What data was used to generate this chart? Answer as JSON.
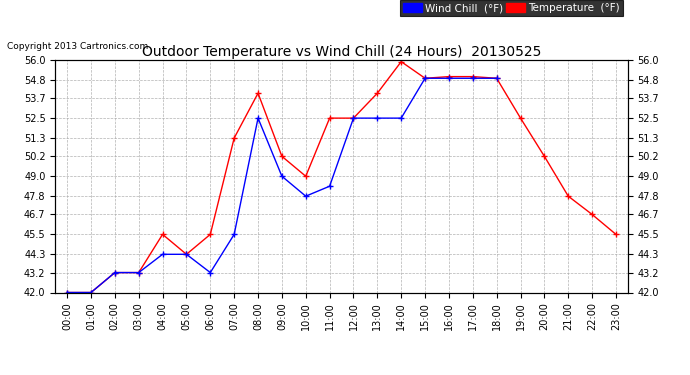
{
  "title": "Outdoor Temperature vs Wind Chill (24 Hours)  20130525",
  "copyright": "Copyright 2013 Cartronics.com",
  "hours": [
    "00:00",
    "01:00",
    "02:00",
    "03:00",
    "04:00",
    "05:00",
    "06:00",
    "07:00",
    "08:00",
    "09:00",
    "10:00",
    "11:00",
    "12:00",
    "13:00",
    "14:00",
    "15:00",
    "16:00",
    "17:00",
    "18:00",
    "19:00",
    "20:00",
    "21:00",
    "22:00",
    "23:00"
  ],
  "temperature": [
    42.0,
    42.0,
    43.2,
    43.2,
    45.5,
    44.3,
    45.5,
    51.3,
    54.0,
    50.2,
    49.0,
    52.5,
    52.5,
    54.0,
    55.9,
    54.9,
    55.0,
    55.0,
    54.9,
    52.5,
    50.2,
    47.8,
    46.7,
    45.5
  ],
  "wind_chill": [
    42.0,
    42.0,
    43.2,
    43.2,
    44.3,
    44.3,
    43.2,
    45.5,
    52.5,
    49.0,
    47.8,
    48.4,
    52.5,
    52.5,
    52.5,
    54.9,
    54.9,
    54.9,
    54.9,
    null,
    null,
    null,
    null,
    null
  ],
  "temp_color": "#FF0000",
  "wind_color": "#0000FF",
  "bg_color": "#FFFFFF",
  "grid_color": "#AAAAAA",
  "ylim_min": 42.0,
  "ylim_max": 56.0,
  "yticks": [
    42.0,
    43.2,
    44.3,
    45.5,
    46.7,
    47.8,
    49.0,
    50.2,
    51.3,
    52.5,
    53.7,
    54.8,
    56.0
  ],
  "legend_wind_bg": "#0000FF",
  "legend_temp_bg": "#FF0000",
  "legend_text": "#FFFFFF"
}
